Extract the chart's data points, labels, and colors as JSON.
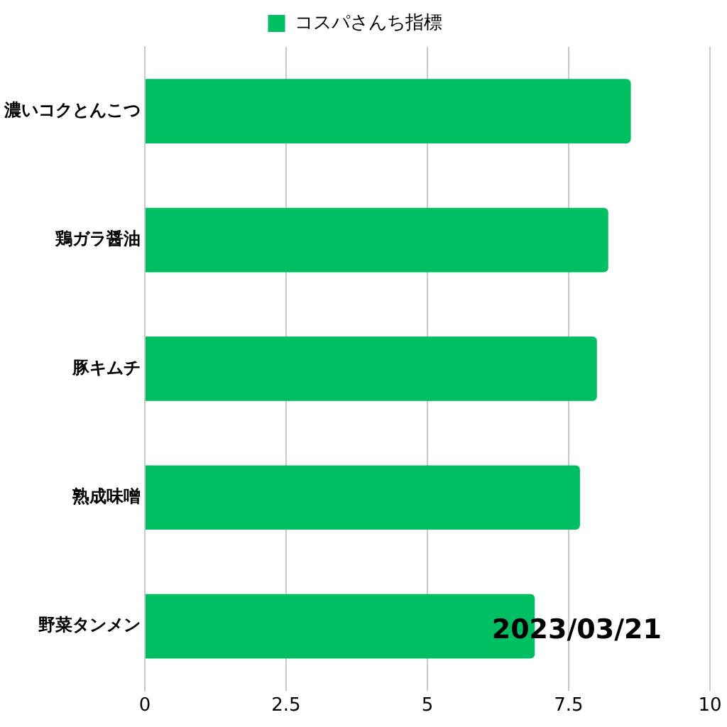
{
  "chart_data": {
    "type": "bar",
    "orientation": "horizontal",
    "categories": [
      "濃いコクとんこつ",
      "鶏ガラ醤油",
      "豚キムチ",
      "熟成味噌",
      "野菜タンメン"
    ],
    "series": [
      {
        "name": "コスパさんち指標",
        "color": "#00bf63",
        "values": [
          8.6,
          8.2,
          8.0,
          7.7,
          6.9
        ]
      }
    ],
    "xlim": [
      0,
      10
    ],
    "xticks": [
      0,
      2.5,
      5,
      7.5,
      10
    ],
    "grid": "x",
    "legend": "top",
    "annotations": [
      "2023/03/21"
    ]
  }
}
